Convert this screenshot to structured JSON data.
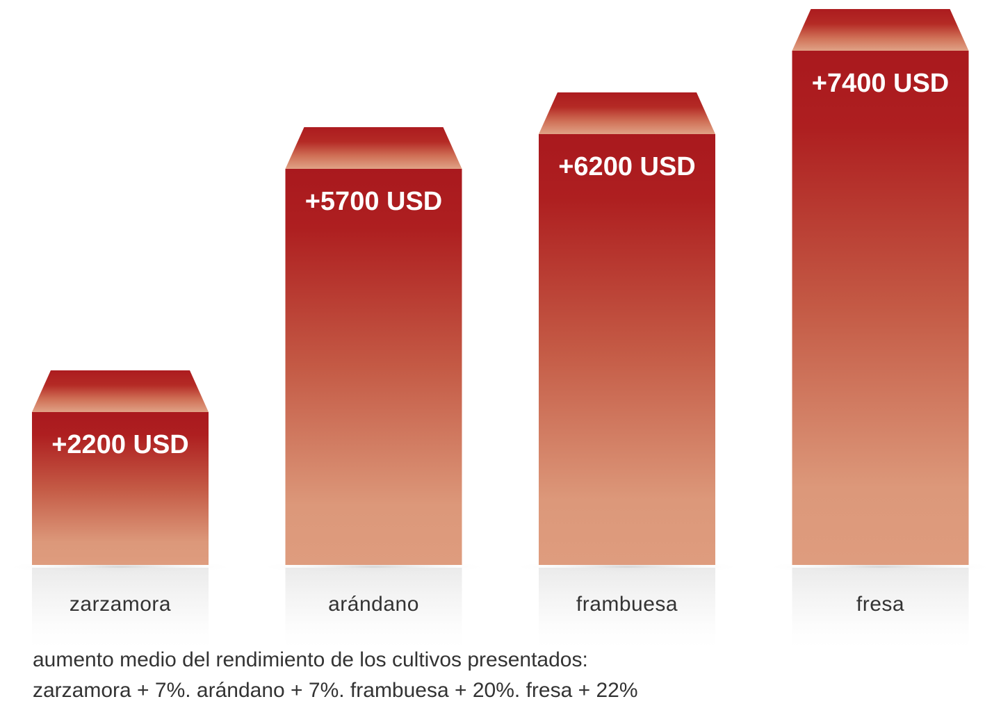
{
  "chart_data": {
    "type": "bar",
    "categories": [
      "zarzamora",
      "arándano",
      "frambuesa",
      "fresa"
    ],
    "values": [
      2200,
      5700,
      6200,
      7400
    ],
    "value_labels": [
      "+2200 USD",
      "+5700 USD",
      "+6200 USD",
      "+7400 USD"
    ],
    "bar_colors": {
      "top": "#b01e21",
      "bottom": "#dd9a7c"
    },
    "grid": false,
    "legend": "none"
  },
  "footnote": {
    "line1": "aumento medio del rendimiento de los cultivos presentados:",
    "line2": "zarzamora + 7%. arándano + 7%. frambuesa + 20%. fresa + 22%"
  }
}
